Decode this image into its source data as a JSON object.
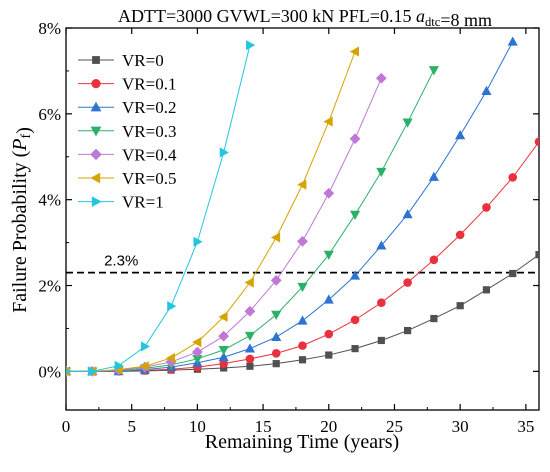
{
  "header": {
    "parts": [
      {
        "text": "ADTT=3000  GVWL=300 kN  PFL=0.15  ",
        "style": "normal"
      },
      {
        "text": "a",
        "style": "italic"
      },
      {
        "text": "dtc",
        "style": "sub"
      },
      {
        "text": "=8 mm",
        "style": "normal"
      }
    ]
  },
  "chart_data": {
    "type": "line",
    "xlabel": "Remaining Time (years)",
    "ylabel_parts": [
      {
        "text": "Failure Probability (",
        "style": "normal"
      },
      {
        "text": "P",
        "style": "italic"
      },
      {
        "text": "f",
        "style": "sub"
      },
      {
        "text": ")",
        "style": "normal"
      }
    ],
    "xlim": [
      0,
      36
    ],
    "ylim": [
      -0.9,
      8
    ],
    "xticks": [
      0,
      5,
      10,
      15,
      20,
      25,
      30,
      35
    ],
    "yticks": [
      0,
      2,
      4,
      6,
      8
    ],
    "ytick_labels": [
      "0%",
      "2%",
      "4%",
      "6%",
      "8%"
    ],
    "legend_position": "top-left",
    "threshold": {
      "value": 2.3,
      "label": "2.3%",
      "style": "dashed"
    },
    "series": [
      {
        "name": "VR=0",
        "color": "#505050",
        "marker": "square",
        "x": [
          0,
          2,
          4,
          6,
          8,
          10,
          12,
          14,
          16,
          18,
          20,
          22,
          24,
          26,
          28,
          30,
          32,
          34,
          36
        ],
        "y": [
          0,
          0,
          0,
          0.01,
          0.03,
          0.05,
          0.08,
          0.12,
          0.18,
          0.27,
          0.38,
          0.53,
          0.72,
          0.95,
          1.23,
          1.53,
          1.9,
          2.28,
          2.72
        ]
      },
      {
        "name": "VR=0.1",
        "color": "#e8313c",
        "marker": "circle",
        "x": [
          0,
          2,
          4,
          6,
          8,
          10,
          12,
          14,
          16,
          18,
          20,
          22,
          24,
          26,
          28,
          30,
          32,
          34,
          36
        ],
        "y": [
          0,
          0,
          0,
          0.02,
          0.05,
          0.1,
          0.18,
          0.29,
          0.42,
          0.6,
          0.87,
          1.2,
          1.6,
          2.07,
          2.6,
          3.18,
          3.82,
          4.52,
          5.35
        ]
      },
      {
        "name": "VR=0.2",
        "color": "#2d73d1",
        "marker": "triangle-up",
        "x": [
          0,
          2,
          4,
          6,
          8,
          10,
          12,
          14,
          16,
          18,
          20,
          22,
          24,
          26,
          28,
          30,
          32,
          34
        ],
        "y": [
          0,
          0,
          0,
          0.04,
          0.1,
          0.2,
          0.33,
          0.53,
          0.8,
          1.18,
          1.67,
          2.23,
          2.93,
          3.66,
          4.53,
          5.5,
          6.53,
          7.68
        ]
      },
      {
        "name": "VR=0.3",
        "color": "#2bb067",
        "marker": "triangle-down",
        "x": [
          0,
          2,
          4,
          6,
          8,
          10,
          12,
          14,
          16,
          18,
          20,
          22,
          24,
          26,
          28
        ],
        "y": [
          0,
          0,
          0.02,
          0.07,
          0.15,
          0.29,
          0.5,
          0.83,
          1.32,
          1.97,
          2.72,
          3.65,
          4.65,
          5.8,
          7.02
        ]
      },
      {
        "name": "VR=0.4",
        "color": "#c078d8",
        "marker": "diamond",
        "x": [
          0,
          2,
          4,
          6,
          8,
          10,
          12,
          14,
          16,
          18,
          20,
          22,
          24
        ],
        "y": [
          0,
          0,
          0.03,
          0.1,
          0.22,
          0.45,
          0.82,
          1.4,
          2.12,
          3.03,
          4.15,
          5.42,
          6.83
        ]
      },
      {
        "name": "VR=0.5",
        "color": "#d6a400",
        "marker": "triangle-left",
        "x": [
          0,
          2,
          4,
          6,
          8,
          10,
          12,
          14,
          16,
          18,
          20,
          22
        ],
        "y": [
          0,
          0,
          0.04,
          0.12,
          0.31,
          0.68,
          1.27,
          2.07,
          3.12,
          4.35,
          5.82,
          7.45
        ]
      },
      {
        "name": "VR=1",
        "color": "#22c7dd",
        "marker": "triangle-right",
        "x": [
          0,
          2,
          4,
          6,
          8,
          10,
          12,
          14
        ],
        "y": [
          0,
          0,
          0.13,
          0.58,
          1.52,
          3.02,
          5.1,
          7.6
        ]
      }
    ]
  }
}
